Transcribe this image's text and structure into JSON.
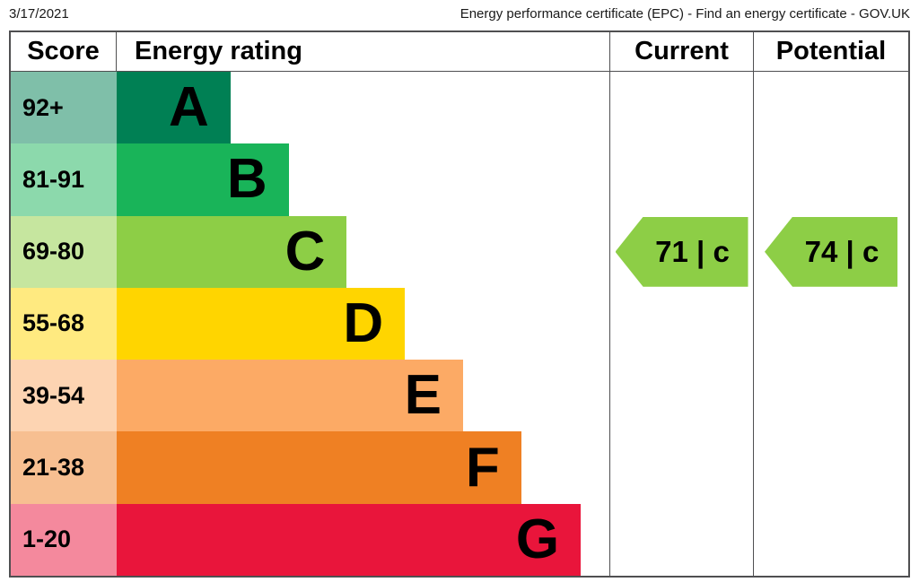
{
  "page": {
    "date": "3/17/2021",
    "title": "Energy performance certificate (EPC) - Find an energy certificate - GOV.UK"
  },
  "table": {
    "headers": {
      "score": "Score",
      "rating": "Energy rating",
      "current": "Current",
      "potential": "Potential"
    }
  },
  "chart_data": {
    "type": "bar",
    "orientation": "horizontal",
    "title": "Energy performance certificate rating bands",
    "columns": [
      "Score",
      "Energy rating",
      "Current",
      "Potential"
    ],
    "bands": [
      {
        "score_range": "92+",
        "letter": "A",
        "color": "#008054",
        "score_bg": "#7fbfa9",
        "bar_width": "23.1%"
      },
      {
        "score_range": "81-91",
        "letter": "B",
        "color": "#19b459",
        "score_bg": "#8cd9ac",
        "bar_width": "34.9%"
      },
      {
        "score_range": "69-80",
        "letter": "C",
        "color": "#8dce46",
        "score_bg": "#c6e69f",
        "bar_width": "46.7%"
      },
      {
        "score_range": "55-68",
        "letter": "D",
        "color": "#ffd500",
        "score_bg": "#ffea80",
        "bar_width": "58.5%"
      },
      {
        "score_range": "39-54",
        "letter": "E",
        "color": "#fcaa65",
        "score_bg": "#fdd4b2",
        "bar_width": "70.3%"
      },
      {
        "score_range": "21-38",
        "letter": "F",
        "color": "#ef8023",
        "score_bg": "#f7bf91",
        "bar_width": "82.1%"
      },
      {
        "score_range": "1-20",
        "letter": "G",
        "color": "#e9153b",
        "score_bg": "#f4899d",
        "bar_width": "94.2%"
      }
    ],
    "current": {
      "score": 71,
      "band": "c",
      "label": "71 | c",
      "row_band": "69-80",
      "color": "#8dce46"
    },
    "potential": {
      "score": 74,
      "band": "c",
      "label": "74 | c",
      "row_band": "69-80",
      "color": "#8dce46"
    }
  }
}
